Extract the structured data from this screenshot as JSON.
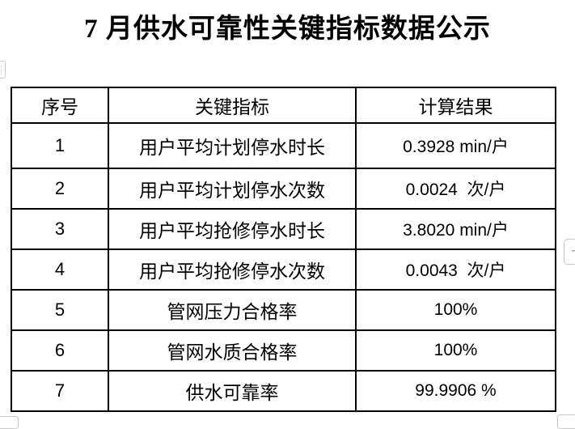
{
  "page": {
    "title": "7 月供水可靠性关键指标数据公示"
  },
  "table": {
    "headers": {
      "no": "序号",
      "indicator": "关键指标",
      "result": "计算结果"
    },
    "rows": [
      {
        "no": "1",
        "indicator": "用户平均计划停水时长",
        "result": "0.3928 min/户"
      },
      {
        "no": "2",
        "indicator": "用户平均计划停水次数",
        "result": "0.0024  次/户"
      },
      {
        "no": "3",
        "indicator": "用户平均抢修停水时长",
        "result": "3.8020 min/户"
      },
      {
        "no": "4",
        "indicator": "用户平均抢修停水次数",
        "result": "0.0043  次/户"
      },
      {
        "no": "5",
        "indicator": "管网压力合格率",
        "result": "100%"
      },
      {
        "no": "6",
        "indicator": "管网水质合格率",
        "result": "100%"
      },
      {
        "no": "7",
        "indicator": "供水可靠率",
        "result": "99.9906 %"
      }
    ]
  },
  "widgets": {
    "add_button_label": "+"
  },
  "colors": {
    "table_border": "#000000",
    "widget_border": "#c8c8c8",
    "text": "#000000",
    "background": "#ffffff"
  }
}
